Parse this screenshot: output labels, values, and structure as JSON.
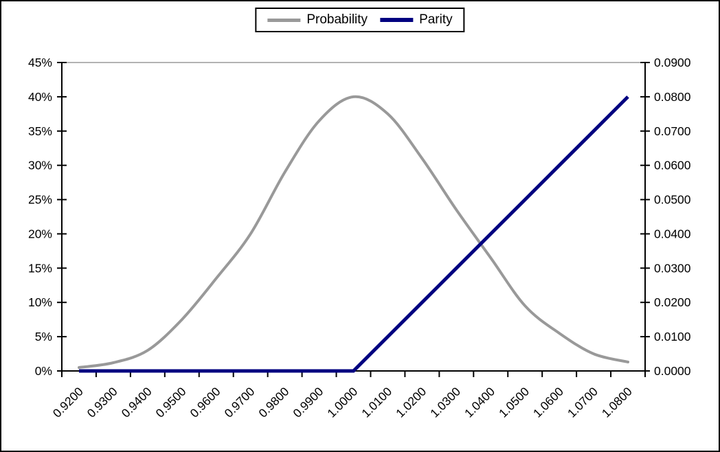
{
  "figure": {
    "background": "#ffffff",
    "border_color": "#000000"
  },
  "legend": {
    "items": [
      {
        "label": "Probability",
        "color": "#999999",
        "swatch_thickness": 5
      },
      {
        "label": "Parity",
        "color": "#000080",
        "swatch_thickness": 6
      }
    ]
  },
  "chart_data": {
    "type": "line",
    "categories": [
      "0.9200",
      "0.9300",
      "0.9400",
      "0.9500",
      "0.9600",
      "0.9700",
      "0.9800",
      "0.9900",
      "1.0000",
      "1.0100",
      "1.0200",
      "1.0300",
      "1.0400",
      "1.0500",
      "1.0600",
      "1.0700",
      "1.0800"
    ],
    "series": [
      {
        "name": "Probability",
        "axis": "left",
        "color": "#999999",
        "stroke_width": 4,
        "smooth": true,
        "values": [
          0.005,
          0.012,
          0.03,
          0.075,
          0.135,
          0.2,
          0.29,
          0.365,
          0.4,
          0.375,
          0.31,
          0.235,
          0.165,
          0.095,
          0.055,
          0.025,
          0.013
        ]
      },
      {
        "name": "Parity",
        "axis": "right",
        "color": "#000080",
        "stroke_width": 5,
        "smooth": false,
        "values": [
          0,
          0,
          0,
          0,
          0,
          0,
          0,
          0,
          0,
          0.01,
          0.02,
          0.03,
          0.04,
          0.05,
          0.06,
          0.07,
          0.08
        ]
      }
    ],
    "left_axis": {
      "min": 0,
      "max": 0.45,
      "ticks": [
        "45%",
        "40%",
        "35%",
        "30%",
        "25%",
        "20%",
        "15%",
        "10%",
        "5%",
        "0%"
      ]
    },
    "right_axis": {
      "min": 0,
      "max": 0.09,
      "ticks": [
        "0.0900",
        "0.0800",
        "0.0700",
        "0.0600",
        "0.0500",
        "0.0400",
        "0.0300",
        "0.0200",
        "0.0100",
        "0.0000"
      ]
    },
    "x_axis": {
      "label_rotation": -45
    },
    "gridlines": {
      "horizontal": "top_only",
      "color": "#b3b3b3"
    },
    "axis_color": "#000000",
    "legend_position": "top-center",
    "title": ""
  }
}
